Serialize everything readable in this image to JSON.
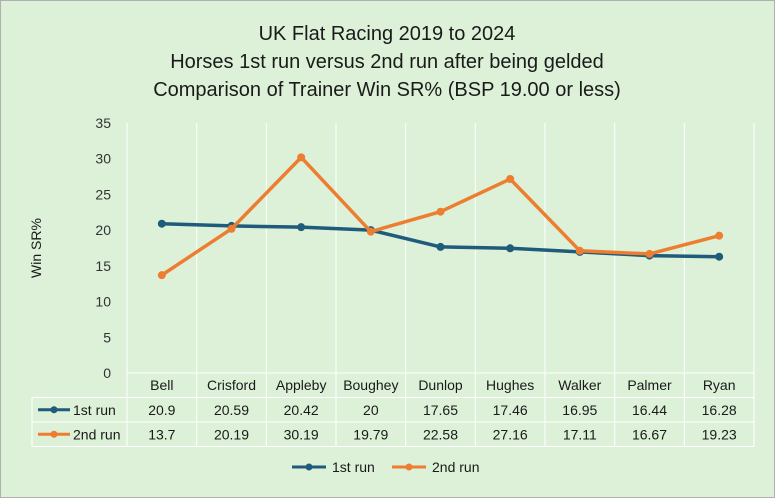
{
  "chart_data": {
    "type": "line",
    "title_lines": [
      "UK Flat Racing 2019 to 2024",
      "Horses 1st run versus 2nd run after being gelded",
      "Comparison of Trainer Win SR% (BSP 19.00 or less)"
    ],
    "ylabel": "Win SR%",
    "ylim": [
      0,
      35
    ],
    "yticks": [
      0,
      5,
      10,
      15,
      20,
      25,
      30,
      35
    ],
    "categories": [
      "Bell",
      "Crisford",
      "Appleby",
      "Boughey",
      "Dunlop",
      "Hughes",
      "Walker",
      "Palmer",
      "Ryan"
    ],
    "series": [
      {
        "name": "1st run",
        "color": "#1f5b7a",
        "values": [
          20.9,
          20.59,
          20.42,
          20,
          17.65,
          17.46,
          16.95,
          16.44,
          16.28
        ],
        "labels": [
          "20.9",
          "20.59",
          "20.42",
          "20",
          "17.65",
          "17.46",
          "16.95",
          "16.44",
          "16.28"
        ]
      },
      {
        "name": "2nd run",
        "color": "#ed7d31",
        "values": [
          13.7,
          20.19,
          30.19,
          19.79,
          22.58,
          27.16,
          17.11,
          16.67,
          19.23
        ],
        "labels": [
          "13.7",
          "20.19",
          "30.19",
          "19.79",
          "22.58",
          "27.16",
          "17.11",
          "16.67",
          "19.23"
        ]
      }
    ],
    "grid": "vertical",
    "legend_position": "bottom",
    "data_table": true,
    "background_color": "#dcf1d8",
    "border_color": "#b0b0b0"
  }
}
